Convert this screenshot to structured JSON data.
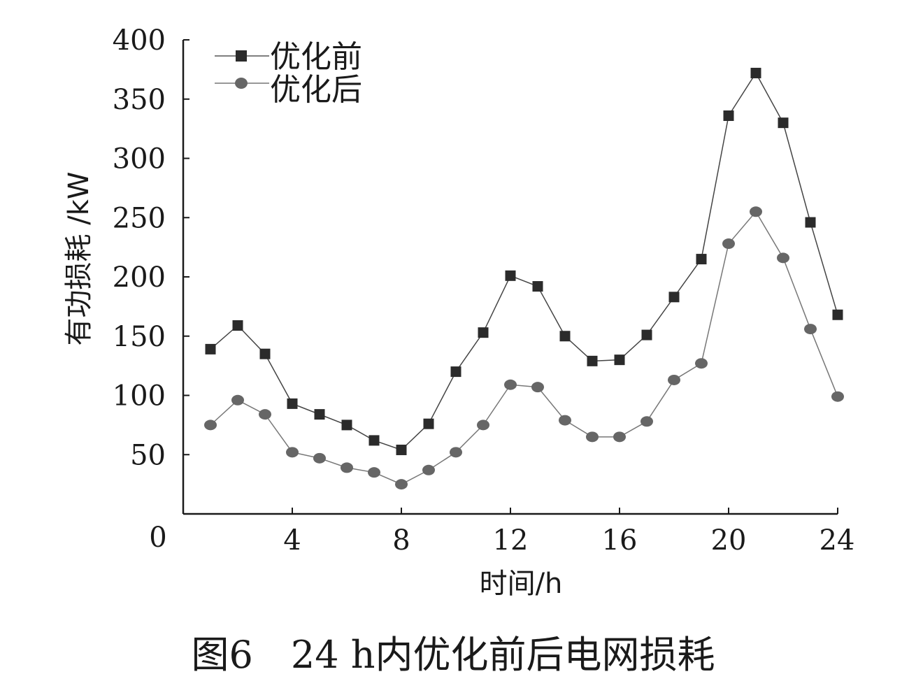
{
  "chart_data": {
    "type": "line",
    "title": "图6　24 h内优化前后电网损耗",
    "xlabel": "时间/h",
    "ylabel": "有功损耗 /kW",
    "xlim": [
      0,
      24
    ],
    "ylim": [
      0,
      400
    ],
    "xticks": [
      4,
      8,
      12,
      16,
      20,
      24
    ],
    "yticks": [
      50,
      100,
      150,
      200,
      250,
      300,
      350,
      400
    ],
    "origin_label": "0",
    "grid": false,
    "legend_position": "top-left",
    "x": [
      1,
      2,
      3,
      4,
      5,
      6,
      7,
      8,
      9,
      10,
      11,
      12,
      13,
      14,
      15,
      16,
      17,
      18,
      19,
      20,
      21,
      22,
      23,
      24
    ],
    "series": [
      {
        "name": "优化前",
        "marker": "square",
        "color": "#2b2b2b",
        "values": [
          139,
          159,
          135,
          93,
          84,
          75,
          62,
          54,
          76,
          120,
          153,
          201,
          192,
          150,
          129,
          130,
          151,
          183,
          215,
          336,
          372,
          330,
          246,
          168
        ]
      },
      {
        "name": "优化后",
        "marker": "circle",
        "color": "#666666",
        "values": [
          75,
          96,
          84,
          52,
          47,
          39,
          35,
          25,
          37,
          52,
          75,
          109,
          107,
          79,
          65,
          65,
          78,
          113,
          127,
          228,
          255,
          216,
          156,
          99
        ]
      }
    ]
  }
}
